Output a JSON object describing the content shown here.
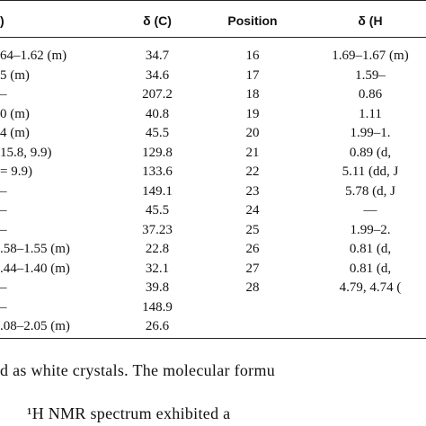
{
  "table": {
    "header": [
      ")",
      "δ (C)",
      "Position",
      "δ (H"
    ],
    "rows": [
      [
        "64–1.62 (m)",
        "34.7",
        "16",
        "1.69–1.67 (m)"
      ],
      [
        "5 (m)",
        "34.6",
        "17",
        "1.59–"
      ],
      [
        "–",
        "207.2",
        "18",
        "0.86"
      ],
      [
        "0 (m)",
        "40.8",
        "19",
        "1.11"
      ],
      [
        "4 (m)",
        "45.5",
        "20",
        "1.99–1."
      ],
      [
        "15.8, 9.9)",
        "129.8",
        "21",
        "0.89 (d,"
      ],
      [
        "= 9.9)",
        "133.6",
        "22",
        "5.11 (dd, J"
      ],
      [
        "–",
        "149.1",
        "23",
        "5.78 (d, J"
      ],
      [
        "–",
        "45.5",
        "24",
        "—"
      ],
      [
        "–",
        "37.23",
        "25",
        "1.99–2."
      ],
      [
        ".58–1.55 (m)",
        "22.8",
        "26",
        "0.81 (d,"
      ],
      [
        ".44–1.40 (m)",
        "32.1",
        "27",
        "0.81 (d,"
      ],
      [
        "–",
        "39.8",
        "28",
        "4.79, 4.74 ("
      ],
      [
        "–",
        "148.9"
      ],
      [
        ".08–2.05 (m)",
        "26.6"
      ]
    ]
  },
  "text": [
    "d as white crystals. The molecular formu",
    "¹H NMR spectrum exhibited a"
  ]
}
